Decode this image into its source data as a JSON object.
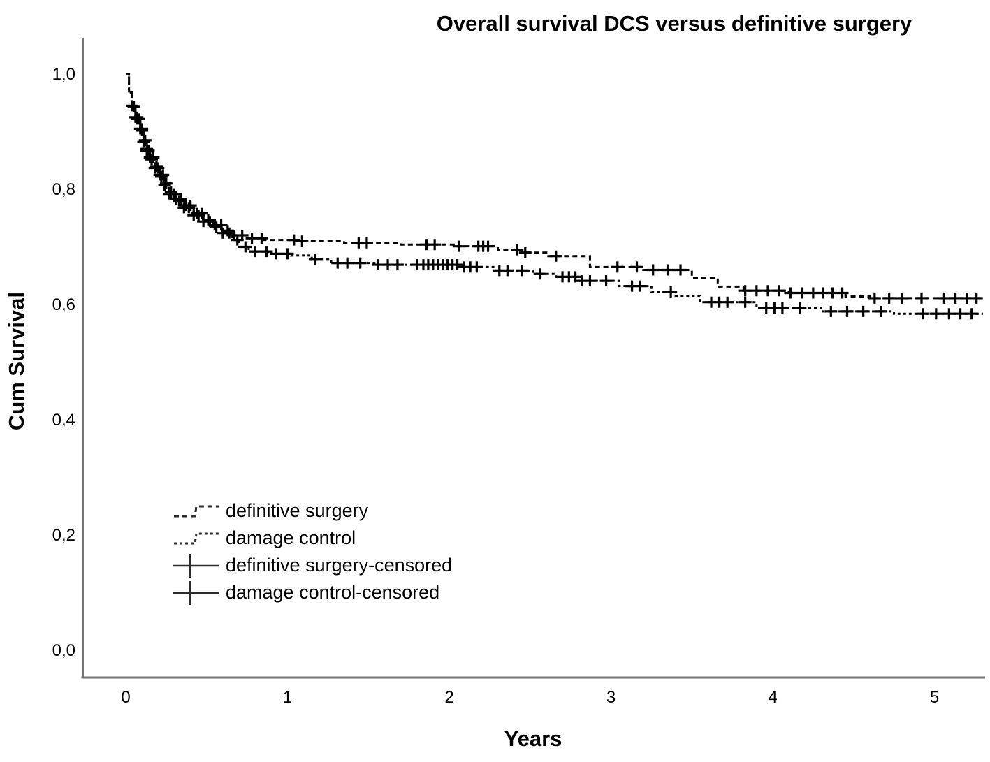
{
  "chart_data": {
    "type": "line",
    "subtype": "kaplan-meier-step",
    "title": "Overall survival DCS versus definitive surgery",
    "xlabel": "Years",
    "ylabel": "Cum Survival",
    "grid": false,
    "legend_position": "inside-lower-left",
    "line_color": "#000000",
    "axis_color": "#757575",
    "x_ticks": {
      "values": [
        0,
        1,
        2,
        3,
        4,
        5
      ],
      "labels": [
        "0",
        "1",
        "2",
        "3",
        "4",
        "5"
      ]
    },
    "y_ticks": {
      "values": [
        1.0,
        0.8,
        0.6,
        0.4,
        0.2,
        0.0
      ],
      "labels": [
        "1,0",
        "0,8",
        "0,6",
        "0,4",
        "0,2",
        "0,0"
      ]
    },
    "xlim": [
      -0.26,
      5.35
    ],
    "ylim": [
      -0.05,
      1.03
    ],
    "series": [
      {
        "id": "definitive-surgery",
        "name": "definitive surgery",
        "dash": [
          7,
          5
        ],
        "end_x": 5.3,
        "points": [
          [
            0,
            1.0
          ],
          [
            0.02,
            0.97
          ],
          [
            0.04,
            0.945
          ],
          [
            0.06,
            0.925
          ],
          [
            0.09,
            0.905
          ],
          [
            0.11,
            0.885
          ],
          [
            0.13,
            0.87
          ],
          [
            0.15,
            0.855
          ],
          [
            0.18,
            0.84
          ],
          [
            0.21,
            0.825
          ],
          [
            0.24,
            0.81
          ],
          [
            0.27,
            0.795
          ],
          [
            0.31,
            0.783
          ],
          [
            0.36,
            0.772
          ],
          [
            0.42,
            0.758
          ],
          [
            0.48,
            0.747
          ],
          [
            0.54,
            0.738
          ],
          [
            0.6,
            0.728
          ],
          [
            0.66,
            0.72
          ],
          [
            0.74,
            0.715
          ],
          [
            0.85,
            0.712
          ],
          [
            1.05,
            0.71
          ],
          [
            1.35,
            0.707
          ],
          [
            1.7,
            0.704
          ],
          [
            2.05,
            0.701
          ],
          [
            2.3,
            0.695
          ],
          [
            2.45,
            0.69
          ],
          [
            2.6,
            0.684
          ],
          [
            2.87,
            0.665
          ],
          [
            3.2,
            0.66
          ],
          [
            3.5,
            0.646
          ],
          [
            3.66,
            0.631
          ],
          [
            3.82,
            0.624
          ],
          [
            4.1,
            0.62
          ],
          [
            4.45,
            0.614
          ],
          [
            4.6,
            0.611
          ]
        ],
        "censored_x": [
          0.04,
          0.06,
          0.07,
          0.09,
          0.1,
          0.12,
          0.13,
          0.15,
          0.17,
          0.19,
          0.21,
          0.23,
          0.25,
          0.28,
          0.31,
          0.34,
          0.37,
          0.4,
          0.44,
          0.47,
          0.51,
          0.55,
          0.59,
          0.63,
          0.67,
          0.72,
          0.78,
          0.84,
          1.04,
          1.09,
          1.44,
          1.49,
          1.86,
          1.91,
          2.06,
          2.18,
          2.21,
          2.24,
          2.42,
          2.47,
          2.66,
          3.04,
          3.16,
          3.26,
          3.35,
          3.43,
          3.83,
          3.9,
          3.97,
          4.04,
          4.11,
          4.18,
          4.25,
          4.31,
          4.37,
          4.43,
          4.63,
          4.72,
          4.8,
          4.92,
          5.06,
          5.13,
          5.2,
          5.26
        ]
      },
      {
        "id": "damage-control",
        "name": "damage control",
        "dash": [
          4,
          4
        ],
        "end_x": 5.3,
        "points": [
          [
            0,
            1.0
          ],
          [
            0.02,
            0.968
          ],
          [
            0.04,
            0.943
          ],
          [
            0.06,
            0.922
          ],
          [
            0.09,
            0.902
          ],
          [
            0.11,
            0.882
          ],
          [
            0.13,
            0.867
          ],
          [
            0.15,
            0.852
          ],
          [
            0.18,
            0.837
          ],
          [
            0.21,
            0.822
          ],
          [
            0.24,
            0.807
          ],
          [
            0.27,
            0.792
          ],
          [
            0.31,
            0.78
          ],
          [
            0.36,
            0.768
          ],
          [
            0.42,
            0.755
          ],
          [
            0.48,
            0.744
          ],
          [
            0.54,
            0.734
          ],
          [
            0.6,
            0.724
          ],
          [
            0.66,
            0.712
          ],
          [
            0.7,
            0.7
          ],
          [
            0.76,
            0.692
          ],
          [
            0.88,
            0.688
          ],
          [
            1.02,
            0.685
          ],
          [
            1.15,
            0.679
          ],
          [
            1.27,
            0.672
          ],
          [
            1.55,
            0.669
          ],
          [
            2.08,
            0.665
          ],
          [
            2.28,
            0.659
          ],
          [
            2.52,
            0.653
          ],
          [
            2.66,
            0.648
          ],
          [
            2.8,
            0.641
          ],
          [
            3.05,
            0.632
          ],
          [
            3.25,
            0.622
          ],
          [
            3.4,
            0.615
          ],
          [
            3.55,
            0.604
          ],
          [
            3.9,
            0.594
          ],
          [
            4.3,
            0.588
          ],
          [
            4.75,
            0.584
          ]
        ],
        "censored_x": [
          0.05,
          0.07,
          0.08,
          0.1,
          0.11,
          0.13,
          0.14,
          0.16,
          0.18,
          0.2,
          0.22,
          0.24,
          0.27,
          0.3,
          0.33,
          0.36,
          0.39,
          0.42,
          0.45,
          0.48,
          0.52,
          0.56,
          0.6,
          0.64,
          0.69,
          0.74,
          0.8,
          0.87,
          0.93,
          1.0,
          1.17,
          1.31,
          1.37,
          1.45,
          1.56,
          1.62,
          1.68,
          1.8,
          1.84,
          1.87,
          1.9,
          1.93,
          1.96,
          1.99,
          2.02,
          2.05,
          2.09,
          2.13,
          2.17,
          2.31,
          2.36,
          2.45,
          2.56,
          2.7,
          2.74,
          2.78,
          2.82,
          2.87,
          2.97,
          3.13,
          3.18,
          3.37,
          3.62,
          3.67,
          3.72,
          3.83,
          3.96,
          4.01,
          4.06,
          4.17,
          4.36,
          4.46,
          4.56,
          4.67,
          4.93,
          5.01,
          5.09,
          5.16,
          5.23
        ]
      }
    ],
    "legend": [
      {
        "label": "definitive surgery",
        "marker": "dashed-step"
      },
      {
        "label": "damage control",
        "marker": "fine-dashed-step"
      },
      {
        "label": "definitive surgery-censored",
        "marker": "plus-line"
      },
      {
        "label": "damage control-censored",
        "marker": "plus-line"
      }
    ]
  }
}
